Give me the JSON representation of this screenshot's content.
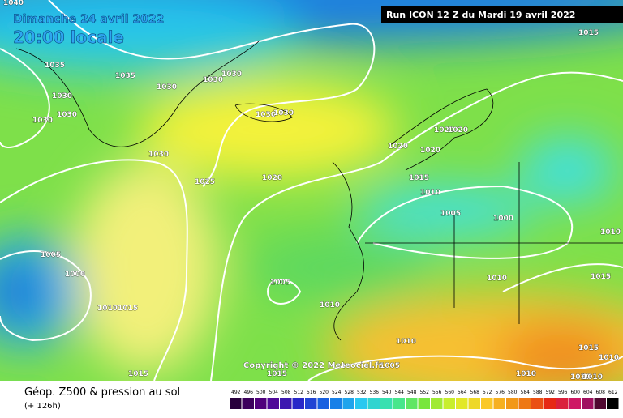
{
  "header": {
    "date": "Dimanche 24 avril 2022",
    "time": "20:00 locale",
    "run": "Run ICON 12 Z du Mardi 19 avril 2022"
  },
  "isobar_labels": [
    "1040",
    "1035",
    "1035",
    "1030",
    "1030",
    "1030",
    "1030",
    "1030",
    "1030",
    "1030",
    "1030",
    "1030",
    "1025",
    "1020",
    "1020",
    "1020",
    "1020",
    "1020",
    "1015",
    "1010",
    "1005",
    "1000",
    "1015",
    "1010",
    "1015",
    "1010",
    "1005",
    "1000",
    "1010",
    "1015",
    "1005",
    "1010",
    "1010",
    "1005",
    "1010",
    "1010",
    "1010",
    "1010",
    "1015",
    "1015",
    "1015"
  ],
  "copyright": "Copyright © 2022 Meteociel.fr",
  "legend": {
    "title": "Géop. Z500 & pression au sol",
    "lead": "(+ 126h)",
    "scale": [
      492,
      496,
      500,
      504,
      508,
      512,
      516,
      520,
      524,
      528,
      532,
      536,
      540,
      544,
      548,
      552,
      556,
      560,
      564,
      568,
      572,
      576,
      580,
      584,
      588,
      592,
      596,
      600,
      604,
      608,
      612
    ]
  }
}
